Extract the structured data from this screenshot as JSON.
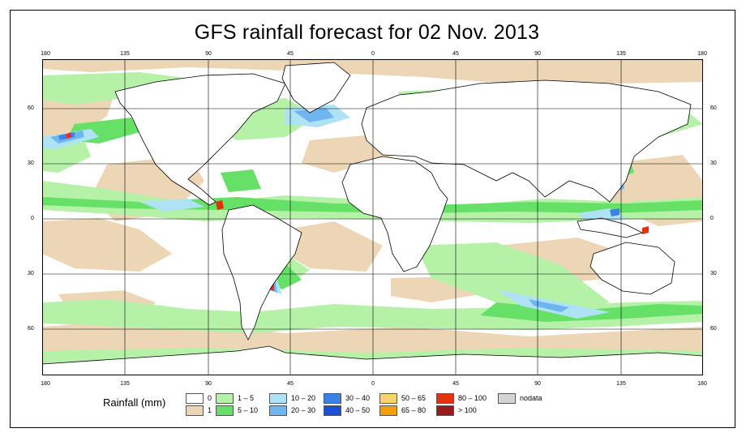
{
  "title": "GFS rainfall forecast for 02 Nov. 2013",
  "x_ticks": [
    "180",
    "135",
    "90",
    "45",
    "0",
    "45",
    "90",
    "135",
    "180"
  ],
  "y_ticks": [
    "60",
    "30",
    "0",
    "30",
    "60"
  ],
  "legend": {
    "title": "Rainfall (mm)",
    "items": [
      {
        "label": "0",
        "color": "#ffffff"
      },
      {
        "label": "1",
        "color": "#ecd6b6"
      },
      {
        "label": "1 – 5",
        "color": "#b5f2a8"
      },
      {
        "label": "5 – 10",
        "color": "#66e066"
      },
      {
        "label": "10 – 20",
        "color": "#aee3f5"
      },
      {
        "label": "20 – 30",
        "color": "#6fb5f0"
      },
      {
        "label": "30 – 40",
        "color": "#3b82e6"
      },
      {
        "label": "40 – 50",
        "color": "#1d4ed8"
      },
      {
        "label": "50 – 65",
        "color": "#f6d36b"
      },
      {
        "label": "65 – 80",
        "color": "#f59e0b"
      },
      {
        "label": "80 – 100",
        "color": "#e4320c"
      },
      {
        "label": "> 100",
        "color": "#9b1b1b"
      },
      {
        "label": "nodata",
        "color": "#d4d4d4"
      }
    ]
  },
  "colors": {
    "sand": "#ecd6b6",
    "light_green": "#b5f2a8",
    "green": "#66e066",
    "light_blue": "#aee3f5",
    "mid_blue": "#6fb5f0",
    "blue": "#3b82e6",
    "red": "#e4320c",
    "grid": "#000000"
  }
}
